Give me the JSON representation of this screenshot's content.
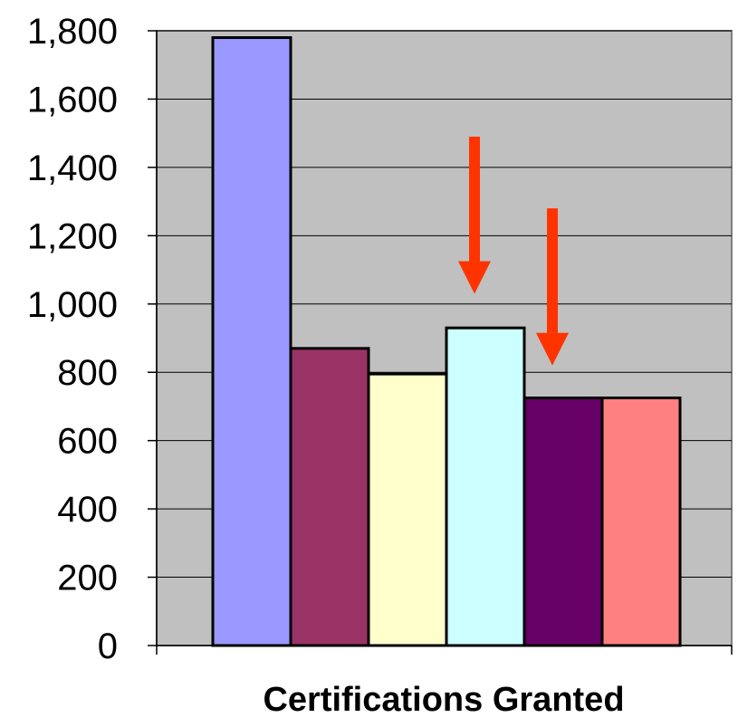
{
  "chart_data": {
    "type": "bar",
    "title": "",
    "xlabel": "Certifications Granted",
    "ylabel": "",
    "ylim": [
      0,
      1800
    ],
    "yticks": [
      0,
      200,
      400,
      600,
      800,
      1000,
      1200,
      1400,
      1600,
      1800
    ],
    "ytick_labels": [
      "0",
      "200",
      "400",
      "600",
      "800",
      "1,000",
      "1,200",
      "1,400",
      "1,600",
      "1,800"
    ],
    "grid": true,
    "legend": "none",
    "categories": [
      "",
      "",
      "",
      "",
      "",
      ""
    ],
    "values": [
      1780,
      870,
      795,
      930,
      725,
      725
    ],
    "colors": [
      "#9999ff",
      "#993366",
      "#ffffcc",
      "#ccffff",
      "#660066",
      "#ff8080"
    ],
    "plot_background": "#c0c0c0",
    "annotations": [
      {
        "type": "arrow",
        "color": "#ff3300",
        "target_bar": 3,
        "from_value": 1490,
        "to_value": 1030
      },
      {
        "type": "arrow",
        "color": "#ff3300",
        "target_bar": 4,
        "from_value": 1280,
        "to_value": 820
      }
    ]
  }
}
